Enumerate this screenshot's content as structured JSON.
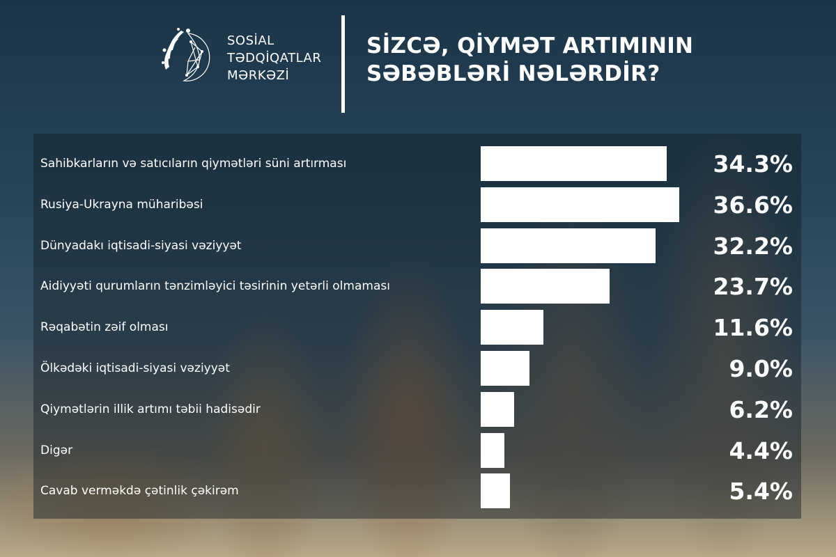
{
  "header": {
    "org_lines": [
      "SOSİAL",
      "TƏDQİQATLAR",
      "MƏRKƏZİ"
    ],
    "org_logo_text": "Sosial Tədqiqatlar Mərkəzi",
    "title_lines": [
      "SİZCƏ, QİYMƏT ARTIMININ",
      "SƏBƏBLƏRİ NƏLƏRDİR?"
    ]
  },
  "colors": {
    "bar": "#ffffff",
    "text": "#ffffff",
    "background": "#1b3448"
  },
  "chart_data": {
    "type": "bar",
    "orientation": "horizontal",
    "title": "SİZCƏ, QİYMƏT ARTIMININ SƏBƏBLƏRİ NƏLƏRDİR?",
    "categories": [
      "Sahibkarların və satıcıların qiymətləri süni artırması",
      "Rusiya-Ukrayna müharibəsi",
      "Dünyadakı iqtisadi-siyasi vəziyyət",
      "Aidiyyəti qurumların tənzimləyici təsirinin yetərli olmaması",
      "Rəqabətin zəif olması",
      "Ölkədəki iqtisadi-siyasi vəziyyət",
      "Qiymətlərin illik artımı təbii hadisədir",
      "Digər",
      "Cavab verməkdə çətinlik çəkirəm"
    ],
    "values": [
      34.3,
      36.6,
      32.2,
      23.7,
      11.6,
      9.0,
      6.2,
      4.4,
      5.4
    ],
    "value_labels": [
      "34.3%",
      "36.6%",
      "32.2%",
      "23.7%",
      "11.6%",
      "9.0%",
      "6.2%",
      "4.4%",
      "5.4%"
    ],
    "unit": "%",
    "grid": false
  }
}
